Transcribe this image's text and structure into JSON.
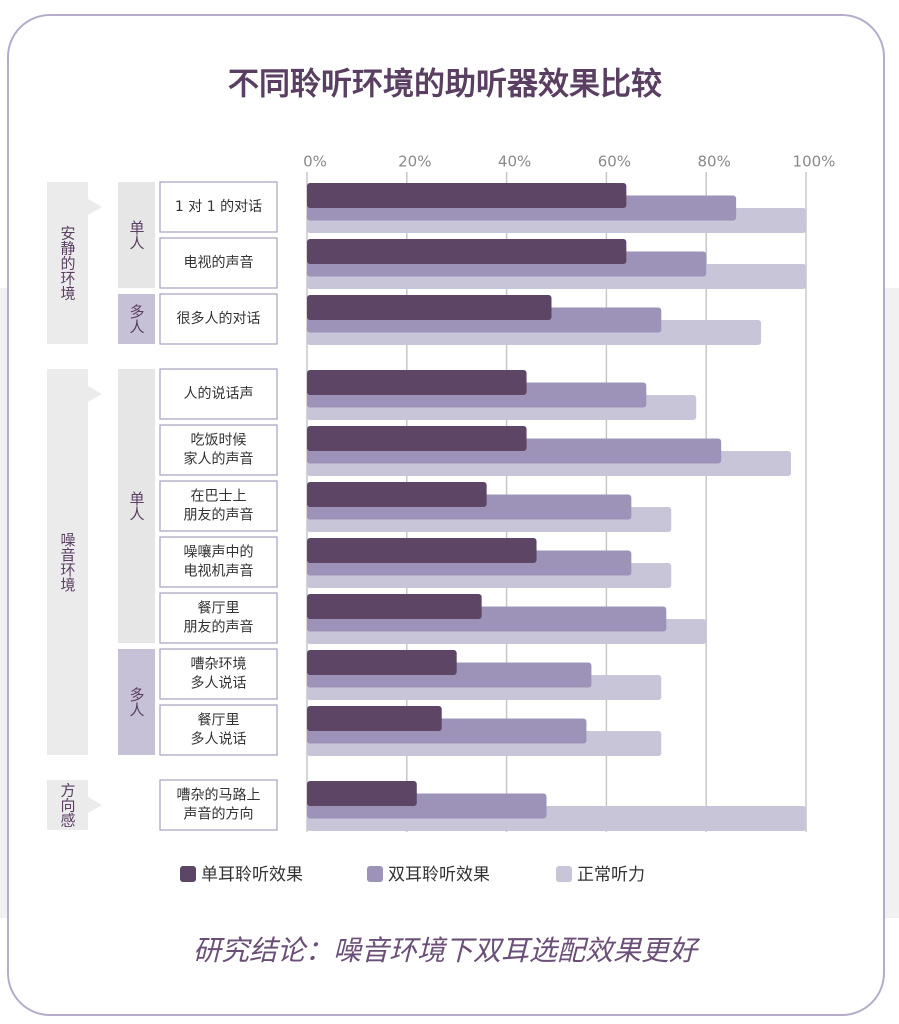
{
  "chart_data": {
    "type": "bar",
    "orientation": "horizontal",
    "title": "不同聆听环境的助听器效果比较",
    "groups": [
      {
        "label": "安静的环境",
        "subgroups": [
          {
            "label": "单人",
            "color": "#e6e6e6",
            "categories": [
              [
                "1 对 1 的对话"
              ],
              [
                "电视的声音"
              ]
            ]
          },
          {
            "label": "多人",
            "color": "#c6c1d6",
            "categories": [
              [
                "很多人的对话"
              ]
            ]
          }
        ]
      },
      {
        "label": "噪音环境",
        "subgroups": [
          {
            "label": "单人",
            "color": "#e6e6e6",
            "categories": [
              [
                "人的说话声"
              ],
              [
                "吃饭时候",
                "家人的声音"
              ],
              [
                "在巴士上",
                "朋友的声音"
              ],
              [
                "噪嚷声中的",
                "电视机声音"
              ],
              [
                "餐厅里",
                "朋友的声音"
              ]
            ]
          },
          {
            "label": "多人",
            "color": "#c6c1d6",
            "categories": [
              [
                "嘈杂环境",
                "多人说话"
              ],
              [
                "餐厅里",
                "多人说话"
              ]
            ]
          }
        ]
      },
      {
        "label": "方向感",
        "subgroups": [
          {
            "categories": [
              [
                "嘈杂的马路上",
                "声音的方向"
              ]
            ]
          }
        ]
      }
    ],
    "series": [
      {
        "name": "单耳聆听效果",
        "color": "#5d4566",
        "values": [
          64,
          64,
          49,
          44,
          44,
          36,
          46,
          35,
          30,
          27,
          22
        ]
      },
      {
        "name": "双耳聆听效果",
        "color": "#9d93b8",
        "values": [
          86,
          80,
          71,
          68,
          83,
          65,
          65,
          72,
          57,
          56,
          48
        ]
      },
      {
        "name": "正常听力",
        "color": "#c9c5d9",
        "values": [
          100,
          100,
          91,
          78,
          97,
          73,
          73,
          80,
          71,
          71,
          100
        ]
      }
    ],
    "xlim": [
      0,
      100
    ],
    "xticks": [
      {
        "value": 0,
        "label": "0%"
      },
      {
        "value": 20,
        "label": "20%"
      },
      {
        "value": 40,
        "label": "40%"
      },
      {
        "value": 60,
        "label": "60%"
      },
      {
        "value": 80,
        "label": "80%"
      },
      {
        "value": 100,
        "label": "100%"
      }
    ],
    "grid": true,
    "legend": "bottom",
    "conclusion": "研究结论：噪音环境下双耳选配效果更好"
  }
}
